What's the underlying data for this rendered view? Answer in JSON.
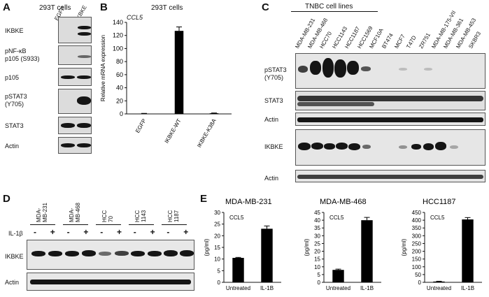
{
  "panelA": {
    "letter": "A",
    "header": "293T cells",
    "lanes": [
      "EGFP",
      "IKBKE"
    ],
    "rows": [
      "IKBKE",
      "pNF-κB",
      "p105 (S933)",
      "p105",
      "pSTAT3",
      "(Y705)",
      "STAT3",
      "Actin"
    ]
  },
  "panelB": {
    "letter": "B",
    "header": "293T cells",
    "gene": "CCL5",
    "ylabel": "Relative mRNA expression"
  },
  "panelC": {
    "letter": "C",
    "group": "TNBC cell lines",
    "lanes": [
      "MDA-MB-231",
      "MDA-MB-468",
      "HCC70",
      "HCC1143",
      "HCC1187",
      "HCC1569",
      "MCF10A",
      "BT474",
      "MCF7",
      "T47D",
      "ZR751",
      "MDA-MB-175-VII",
      "MDA-MB-361",
      "MDA-MB-453",
      "SKBR3"
    ],
    "rows": [
      "pSTAT3",
      "(Y705)",
      "STAT3",
      "Actin",
      "IKBKE",
      "Actin"
    ]
  },
  "panelD": {
    "letter": "D",
    "groups": [
      [
        "MDA-",
        "MB-231"
      ],
      [
        "MDA-",
        "MB-468"
      ],
      [
        "HCC",
        "70"
      ],
      [
        "HCC",
        "1143"
      ],
      [
        "HCC",
        "1187"
      ]
    ],
    "treatment": "IL-1β",
    "signs": [
      "-",
      "+",
      "-",
      "+",
      "-",
      "+",
      "-",
      "+",
      "-",
      "+"
    ],
    "rows": [
      "IKBKE",
      "Actin"
    ]
  },
  "panelE": {
    "letter": "E",
    "unit": "(pg/ml)",
    "gene": "CCL5",
    "titles": [
      "MDA-MB-231",
      "MDA-MB-468",
      "HCC1187"
    ]
  },
  "chart_data": [
    {
      "type": "bar",
      "title": "293T cells",
      "ylabel": "Relative mRNA expression",
      "annotation": "CCL5",
      "categories": [
        "EGFP",
        "IKBKE-WT",
        "IKBKE-K38A"
      ],
      "values": [
        0.5,
        127,
        1
      ],
      "errors": [
        0.3,
        6,
        0.4
      ],
      "ylim": [
        0,
        140
      ],
      "yticks": [
        0,
        20,
        40,
        60,
        80,
        100,
        120,
        140
      ]
    },
    {
      "type": "bar",
      "title": "MDA-MB-231",
      "ylabel": "(pg/ml)",
      "annotation": "CCL5",
      "categories": [
        "Untreated",
        "IL-1B"
      ],
      "values": [
        10.5,
        23
      ],
      "errors": [
        0.2,
        1.2
      ],
      "ylim": [
        0,
        30
      ],
      "yticks": [
        0,
        5,
        10,
        15,
        20,
        25,
        30
      ]
    },
    {
      "type": "bar",
      "title": "MDA-MB-468",
      "ylabel": "(pg/ml)",
      "annotation": "CCL5",
      "categories": [
        "Untreated",
        "IL-1B"
      ],
      "values": [
        8,
        40
      ],
      "errors": [
        0.5,
        1.8
      ],
      "ylim": [
        0,
        45
      ],
      "yticks": [
        0,
        5,
        10,
        15,
        20,
        25,
        30,
        35,
        40,
        45
      ]
    },
    {
      "type": "bar",
      "title": "HCC1187",
      "ylabel": "(pg/ml)",
      "annotation": "CCL5",
      "categories": [
        "Untreated",
        "IL-1B"
      ],
      "values": [
        5,
        405
      ],
      "errors": [
        2,
        12
      ],
      "ylim": [
        0,
        450
      ],
      "yticks": [
        0,
        50,
        100,
        150,
        200,
        250,
        300,
        350,
        400,
        450
      ]
    }
  ]
}
